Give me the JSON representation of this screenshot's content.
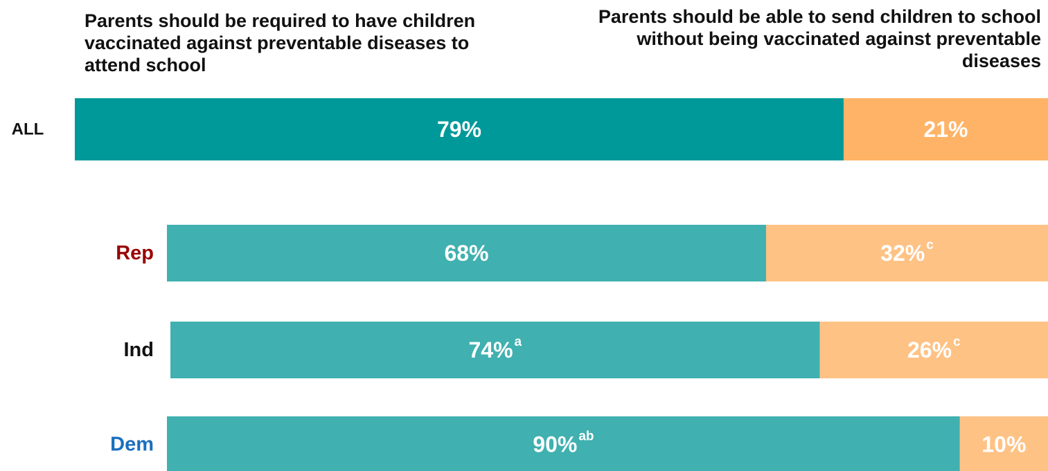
{
  "chart_data": {
    "type": "bar",
    "orientation": "horizontal",
    "stacked": true,
    "normalized_percent": true,
    "legend": "none",
    "grid": false,
    "series": [
      {
        "name": "Parents should be required to have children vaccinated against preventable diseases to attend school",
        "values": [
          79,
          68,
          74,
          90
        ]
      },
      {
        "name": "Parents should be able to send children to school without being vaccinated against preventable diseases",
        "values": [
          21,
          32,
          26,
          10
        ]
      }
    ],
    "categories": [
      "ALL",
      "Rep",
      "Ind",
      "Dem"
    ],
    "data_labels": [
      [
        {
          "text": "79%",
          "sup": ""
        },
        {
          "text": "21%",
          "sup": ""
        }
      ],
      [
        {
          "text": "68%",
          "sup": ""
        },
        {
          "text": "32%",
          "sup": "c"
        }
      ],
      [
        {
          "text": "74%",
          "sup": "a"
        },
        {
          "text": "26%",
          "sup": "c"
        }
      ],
      [
        {
          "text": "90%",
          "sup": "ab"
        },
        {
          "text": "10%",
          "sup": ""
        }
      ]
    ],
    "colors": {
      "all_primary": "#009999",
      "all_secondary": "#FFB366",
      "group_primary": "#40B0B0",
      "group_secondary": "#FFC285",
      "label_all": "#111111",
      "label_rep": "#990000",
      "label_ind": "#111111",
      "label_dem": "#1A6FBF"
    }
  }
}
